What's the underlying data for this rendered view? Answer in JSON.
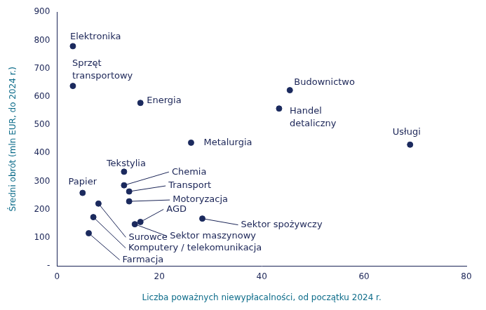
{
  "chart_data": {
    "type": "scatter",
    "x_label": "Liczba poważnych niewypłacalności, od początku 2024 r.",
    "y_label": "Średni obrót (mln EUR, do 2024 r.)",
    "labels": [
      "Elektronika",
      "Sprzęt transportowy",
      "Energia",
      "Budownictwo",
      "Handel detaliczny",
      "Usługi",
      "Metalurgia",
      "Tekstylia",
      "Chemia",
      "Transport",
      "Motoryzacja",
      "Papier",
      "AGD",
      "Surowce",
      "Sektor maszynowy",
      "Sektor spożywczy",
      "Komputery / telekomunikacja",
      "Farmacja"
    ],
    "x": [
      3.1,
      3.1,
      16.3,
      45.5,
      43.4,
      69,
      26.2,
      13.1,
      13.1,
      14.1,
      14.1,
      5,
      16.3,
      8.1,
      15.2,
      28.4,
      7.1,
      6.2
    ],
    "values": [
      779,
      638,
      578,
      623,
      558,
      430,
      437,
      334,
      286,
      264,
      229,
      259,
      156,
      221,
      148,
      168,
      173,
      116
    ],
    "color": "#1b2a5e",
    "xlim": [
      0,
      80
    ],
    "xticks": [
      0,
      20,
      40,
      60,
      80
    ],
    "ylim": [
      0,
      900
    ],
    "yticks": [
      {
        "value": 0,
        "label": "-"
      },
      100,
      200,
      300,
      400,
      500,
      600,
      700,
      800,
      900
    ],
    "grid": false
  }
}
